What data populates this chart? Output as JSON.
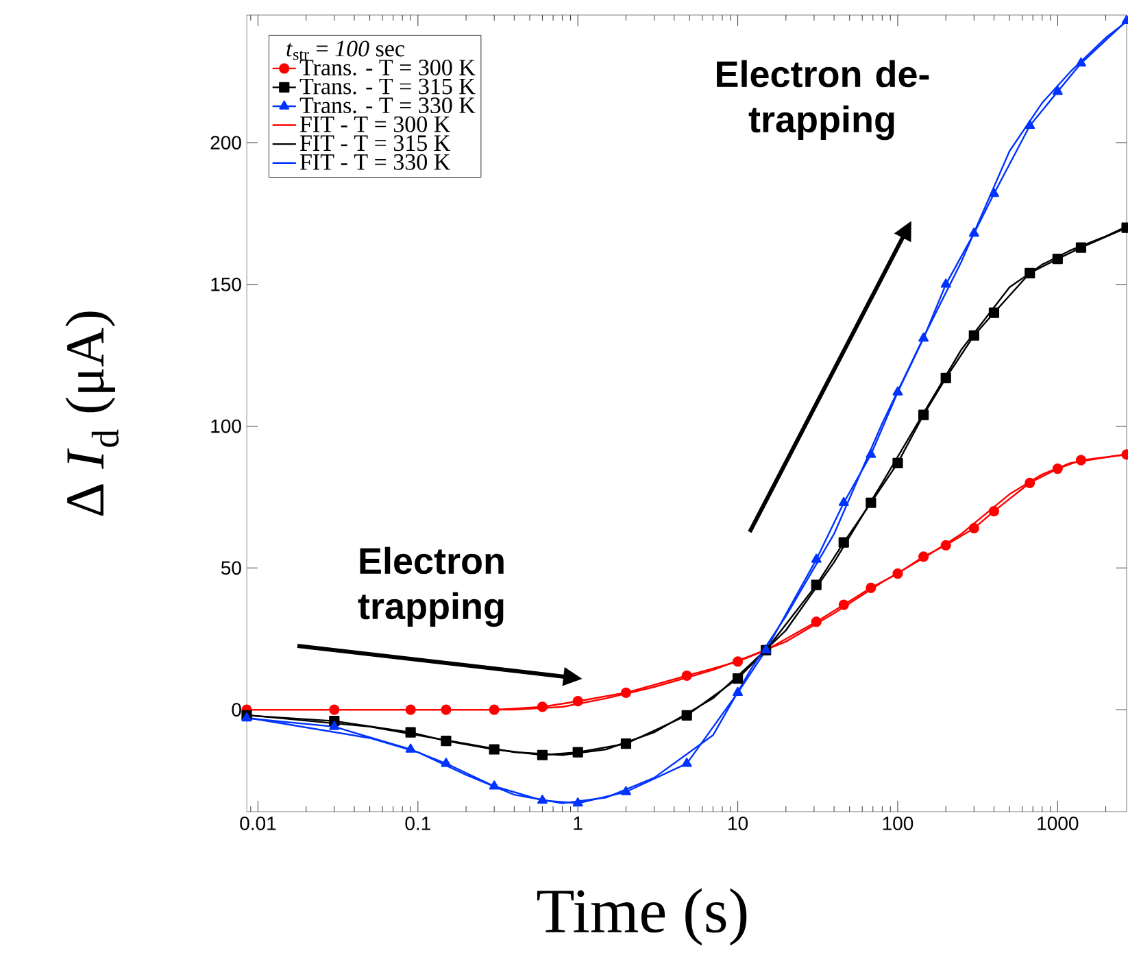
{
  "chart_data": {
    "type": "line",
    "xlabel": "Time (s)",
    "ylabel": "Δ *I*$_{d}$ (μA)",
    "legend_title": "*t*$_{str}$ = *100* sec",
    "log": "x",
    "xlim": [
      0.0085,
      2700
    ],
    "xticks": [
      0.01,
      0.1,
      1,
      10,
      100,
      1000
    ],
    "ylim": [
      -36,
      245
    ],
    "yticks": [
      0,
      50,
      100,
      150,
      200
    ],
    "legend": "top left",
    "x": [
      0.0085,
      0.03,
      0.09,
      0.15,
      0.3,
      0.6,
      1,
      2,
      4.8,
      10,
      15,
      31,
      46,
      68,
      100,
      145,
      200,
      300,
      400,
      670,
      1000,
      1400,
      2700
    ],
    "series": [
      {
        "name": "Trans. - T = 300 K",
        "color": "#ff0000",
        "marker": "circle",
        "values": [
          0,
          0,
          0,
          0,
          0,
          1,
          3,
          6,
          12,
          17,
          21,
          31,
          37,
          43,
          48,
          54,
          58,
          64,
          70,
          80,
          85,
          88,
          90
        ]
      },
      {
        "name": "Trans. - T = 315 K",
        "color": "#000000",
        "marker": "square",
        "values": [
          -2,
          -4,
          -8,
          -11,
          -14,
          -16,
          -15,
          -12,
          -2,
          11,
          21,
          44,
          59,
          73,
          87,
          104,
          117,
          132,
          140,
          154,
          159,
          163,
          170
        ]
      },
      {
        "name": "Trans. - T = 330 K",
        "color": "#0033ff",
        "marker": "triangle",
        "values": [
          -3,
          -6,
          -14,
          -19,
          -27,
          -32,
          -33,
          -29,
          -19,
          6,
          21,
          53,
          73,
          90,
          112,
          131,
          150,
          168,
          182,
          206,
          218,
          228,
          243
        ]
      },
      {
        "name": "FIT - T = 300 K",
        "color": "#ff0000",
        "marker": "none",
        "x": [
          0.009,
          0.05,
          0.1,
          0.2,
          0.4,
          0.8,
          1.5,
          3,
          7,
          12,
          20,
          40,
          80,
          150,
          250,
          500,
          800,
          1200,
          2000,
          2600
        ],
        "values": [
          0,
          0,
          0,
          0,
          0,
          1,
          4,
          8,
          14,
          19,
          24,
          34,
          45,
          54,
          62,
          76,
          83,
          87,
          89,
          90
        ]
      },
      {
        "name": "FIT - T = 315 K",
        "color": "#000000",
        "marker": "none",
        "x": [
          0.009,
          0.05,
          0.1,
          0.2,
          0.4,
          0.8,
          1.5,
          3,
          7,
          12,
          20,
          40,
          80,
          150,
          250,
          500,
          800,
          1200,
          2000,
          2600
        ],
        "values": [
          -2,
          -6,
          -9,
          -12,
          -15,
          -16,
          -14,
          -8,
          4,
          16,
          28,
          52,
          80,
          106,
          127,
          149,
          157,
          162,
          167,
          170
        ]
      },
      {
        "name": "FIT - T = 330 K",
        "color": "#0033ff",
        "marker": "none",
        "x": [
          0.009,
          0.05,
          0.1,
          0.2,
          0.4,
          0.8,
          1.5,
          3,
          7,
          12,
          20,
          40,
          80,
          150,
          250,
          500,
          800,
          1200,
          2000,
          2600
        ],
        "values": [
          -3,
          -10,
          -15,
          -23,
          -30,
          -33,
          -31,
          -24,
          -9,
          14,
          33,
          62,
          101,
          133,
          158,
          197,
          214,
          225,
          237,
          242
        ]
      }
    ],
    "annotations": [
      "Electron trapping",
      "Electron de-trapping"
    ]
  }
}
